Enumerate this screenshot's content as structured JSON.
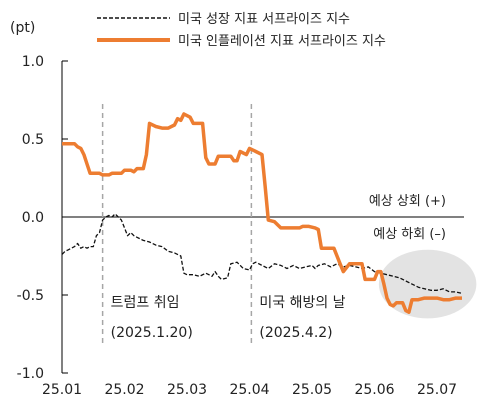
{
  "chart_data": {
    "type": "line",
    "unit_label": "(pt)",
    "ylim": [
      -1.0,
      1.0
    ],
    "y_ticks": [
      {
        "value": 1.0,
        "label": "1.0"
      },
      {
        "value": 0.5,
        "label": "0.5"
      },
      {
        "value": 0.0,
        "label": "0.0"
      },
      {
        "value": -0.5,
        "label": "-0.5"
      },
      {
        "value": -1.0,
        "label": "-1.0"
      }
    ],
    "x_ticks": [
      "25.01",
      "25.02",
      "25.03",
      "25.04",
      "25.05",
      "25.06",
      "25.07"
    ],
    "legend_position": "top",
    "series": [
      {
        "name": "미국 성장 지표 서프라이즈 지수",
        "style": "dashed",
        "color": "#111111",
        "points": [
          [
            0.0,
            -0.24
          ],
          [
            0.05,
            -0.22
          ],
          [
            0.1,
            -0.21
          ],
          [
            0.15,
            -0.2
          ],
          [
            0.2,
            -0.19
          ],
          [
            0.25,
            -0.17
          ],
          [
            0.3,
            -0.2
          ],
          [
            0.35,
            -0.19
          ],
          [
            0.4,
            -0.2
          ],
          [
            0.45,
            -0.19
          ],
          [
            0.5,
            -0.19
          ],
          [
            0.55,
            -0.12
          ],
          [
            0.6,
            -0.1
          ],
          [
            0.65,
            -0.02
          ],
          [
            0.7,
            0.0
          ],
          [
            0.75,
            0.01
          ],
          [
            0.8,
            0.0
          ],
          [
            0.85,
            0.02
          ],
          [
            0.9,
            0.0
          ],
          [
            0.95,
            -0.02
          ],
          [
            1.0,
            -0.07
          ],
          [
            1.05,
            -0.12
          ],
          [
            1.1,
            -0.1
          ],
          [
            1.15,
            -0.12
          ],
          [
            1.2,
            -0.13
          ],
          [
            1.3,
            -0.15
          ],
          [
            1.4,
            -0.16
          ],
          [
            1.5,
            -0.18
          ],
          [
            1.6,
            -0.19
          ],
          [
            1.7,
            -0.22
          ],
          [
            1.8,
            -0.23
          ],
          [
            1.85,
            -0.24
          ],
          [
            1.9,
            -0.25
          ],
          [
            1.95,
            -0.36
          ],
          [
            2.0,
            -0.37
          ],
          [
            2.1,
            -0.37
          ],
          [
            2.2,
            -0.38
          ],
          [
            2.3,
            -0.36
          ],
          [
            2.35,
            -0.37
          ],
          [
            2.4,
            -0.38
          ],
          [
            2.45,
            -0.35
          ],
          [
            2.5,
            -0.38
          ],
          [
            2.55,
            -0.4
          ],
          [
            2.65,
            -0.39
          ],
          [
            2.7,
            -0.3
          ],
          [
            2.8,
            -0.29
          ],
          [
            2.9,
            -0.33
          ],
          [
            3.0,
            -0.34
          ],
          [
            3.05,
            -0.3
          ],
          [
            3.1,
            -0.29
          ],
          [
            3.2,
            -0.31
          ],
          [
            3.3,
            -0.33
          ],
          [
            3.4,
            -0.3
          ],
          [
            3.5,
            -0.31
          ],
          [
            3.6,
            -0.33
          ],
          [
            3.7,
            -0.31
          ],
          [
            3.8,
            -0.33
          ],
          [
            3.9,
            -0.32
          ],
          [
            4.0,
            -0.31
          ],
          [
            4.05,
            -0.33
          ],
          [
            4.1,
            -0.31
          ],
          [
            4.2,
            -0.3
          ],
          [
            4.3,
            -0.32
          ],
          [
            4.4,
            -0.3
          ],
          [
            4.5,
            -0.32
          ],
          [
            4.6,
            -0.31
          ],
          [
            4.7,
            -0.32
          ],
          [
            4.8,
            -0.33
          ],
          [
            4.9,
            -0.32
          ],
          [
            5.0,
            -0.35
          ],
          [
            5.1,
            -0.36
          ],
          [
            5.2,
            -0.37
          ],
          [
            5.3,
            -0.38
          ],
          [
            5.4,
            -0.39
          ],
          [
            5.5,
            -0.41
          ],
          [
            5.6,
            -0.43
          ],
          [
            5.7,
            -0.45
          ],
          [
            5.8,
            -0.46
          ],
          [
            5.9,
            -0.47
          ],
          [
            6.0,
            -0.47
          ],
          [
            6.1,
            -0.46
          ],
          [
            6.2,
            -0.48
          ],
          [
            6.3,
            -0.48
          ],
          [
            6.4,
            -0.49
          ]
        ]
      },
      {
        "name": "미국 인플레이션 지표 서프라이즈 지수",
        "style": "solid",
        "color": "#ED7D31",
        "points": [
          [
            0.0,
            0.47
          ],
          [
            0.2,
            0.47
          ],
          [
            0.25,
            0.45
          ],
          [
            0.3,
            0.44
          ],
          [
            0.35,
            0.4
          ],
          [
            0.4,
            0.34
          ],
          [
            0.45,
            0.28
          ],
          [
            0.6,
            0.28
          ],
          [
            0.65,
            0.27
          ],
          [
            0.75,
            0.27
          ],
          [
            0.8,
            0.28
          ],
          [
            0.95,
            0.28
          ],
          [
            1.0,
            0.3
          ],
          [
            1.1,
            0.3
          ],
          [
            1.15,
            0.29
          ],
          [
            1.2,
            0.31
          ],
          [
            1.3,
            0.31
          ],
          [
            1.35,
            0.4
          ],
          [
            1.4,
            0.6
          ],
          [
            1.5,
            0.58
          ],
          [
            1.6,
            0.57
          ],
          [
            1.7,
            0.57
          ],
          [
            1.8,
            0.59
          ],
          [
            1.85,
            0.63
          ],
          [
            1.9,
            0.62
          ],
          [
            1.95,
            0.66
          ],
          [
            2.05,
            0.64
          ],
          [
            2.1,
            0.6
          ],
          [
            2.25,
            0.6
          ],
          [
            2.3,
            0.38
          ],
          [
            2.35,
            0.34
          ],
          [
            2.45,
            0.34
          ],
          [
            2.5,
            0.39
          ],
          [
            2.7,
            0.39
          ],
          [
            2.75,
            0.36
          ],
          [
            2.8,
            0.36
          ],
          [
            2.85,
            0.42
          ],
          [
            2.95,
            0.4
          ],
          [
            3.0,
            0.44
          ],
          [
            3.1,
            0.42
          ],
          [
            3.2,
            0.4
          ],
          [
            3.25,
            0.2
          ],
          [
            3.3,
            -0.02
          ],
          [
            3.4,
            -0.03
          ],
          [
            3.5,
            -0.07
          ],
          [
            3.8,
            -0.07
          ],
          [
            3.85,
            -0.06
          ],
          [
            3.95,
            -0.06
          ],
          [
            4.05,
            -0.07
          ],
          [
            4.1,
            -0.08
          ],
          [
            4.15,
            -0.2
          ],
          [
            4.35,
            -0.2
          ],
          [
            4.4,
            -0.25
          ],
          [
            4.45,
            -0.3
          ],
          [
            4.5,
            -0.35
          ],
          [
            4.6,
            -0.3
          ],
          [
            4.8,
            -0.3
          ],
          [
            4.85,
            -0.4
          ],
          [
            5.0,
            -0.4
          ],
          [
            5.05,
            -0.35
          ],
          [
            5.1,
            -0.35
          ],
          [
            5.15,
            -0.43
          ],
          [
            5.2,
            -0.52
          ],
          [
            5.25,
            -0.56
          ],
          [
            5.3,
            -0.57
          ],
          [
            5.35,
            -0.55
          ],
          [
            5.45,
            -0.55
          ],
          [
            5.5,
            -0.6
          ],
          [
            5.55,
            -0.61
          ],
          [
            5.6,
            -0.53
          ],
          [
            5.7,
            -0.53
          ],
          [
            5.8,
            -0.52
          ],
          [
            5.9,
            -0.52
          ],
          [
            6.0,
            -0.52
          ],
          [
            6.1,
            -0.53
          ],
          [
            6.2,
            -0.53
          ],
          [
            6.3,
            -0.52
          ],
          [
            6.4,
            -0.52
          ]
        ]
      }
    ],
    "annotations": [
      {
        "x": 0.65,
        "text": "트럼프 취임",
        "date_text": "(2025.1.20)"
      },
      {
        "x": 3.03,
        "text": "미국 해방의 날",
        "date_text": "(2025.4.2)"
      }
    ],
    "zero_line_labels": {
      "above": "예상 상회 (+)",
      "below": "예상 하회 (–)"
    },
    "highlight": {
      "cx": 5.85,
      "cy": -0.43,
      "rx": 0.78,
      "ry": 0.22,
      "color": "#D9D9D9"
    }
  }
}
